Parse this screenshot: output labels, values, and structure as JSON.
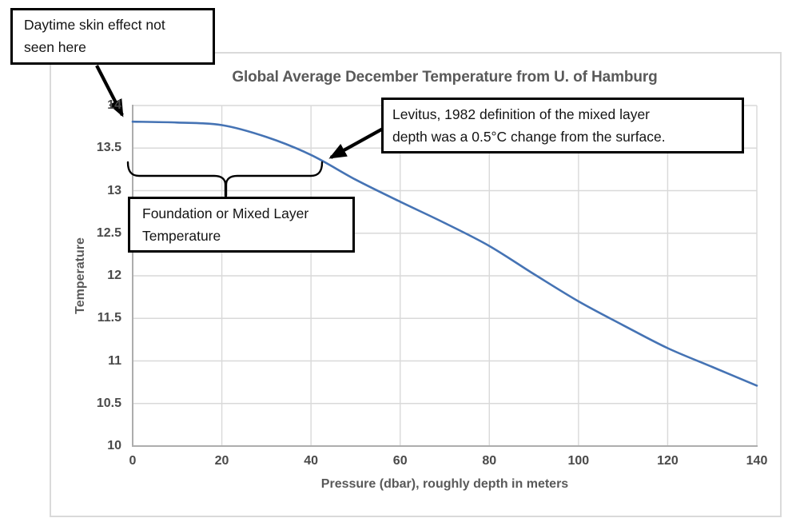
{
  "title_bar": "",
  "annotations": {
    "daytime": {
      "line1": "Daytime skin effect not",
      "line2": "seen here"
    },
    "levitus": {
      "line1": "Levitus, 1982 definition of the mixed layer",
      "line2": "depth was a 0.5°C change from the surface."
    },
    "foundation": {
      "line1": "Foundation or Mixed Layer",
      "line2": "Temperature"
    }
  },
  "chart_data": {
    "type": "line",
    "title": "Global Average December Temperature from U. of Hamburg",
    "xlabel": "Pressure (dbar), roughly depth in meters",
    "ylabel": "Temperature",
    "xlim": [
      0,
      140
    ],
    "ylim": [
      10,
      14
    ],
    "xticks": [
      0,
      20,
      40,
      60,
      80,
      100,
      120,
      140
    ],
    "yticks": [
      10,
      10.5,
      11,
      11.5,
      12,
      12.5,
      13,
      13.5,
      14
    ],
    "grid": true,
    "legend": false,
    "series": [
      {
        "name": "Global average December temperature profile",
        "color": "#4573b4",
        "x": [
          0,
          10,
          20,
          30,
          40,
          50,
          60,
          70,
          80,
          90,
          100,
          110,
          120,
          130,
          140
        ],
        "y": [
          13.81,
          13.8,
          13.77,
          13.63,
          13.42,
          13.13,
          12.87,
          12.62,
          12.35,
          12.02,
          11.7,
          11.42,
          11.15,
          10.93,
          10.71
        ]
      }
    ],
    "annotation_targets": {
      "levitus_arrow_points_at_pressure": 43,
      "levitus_arrow_points_at_temp": 13.3,
      "mixed_layer_brace_span_pressure": [
        0,
        42
      ]
    }
  },
  "colors": {
    "curve": "#4573b4",
    "gridline": "#d9d9d9",
    "axis_line": "#adadad",
    "frame_border": "#dadada",
    "title_text": "#595959",
    "tick_text": "#4a4a4a",
    "annotation_border": "#000000",
    "annotation_text": "#141414"
  }
}
